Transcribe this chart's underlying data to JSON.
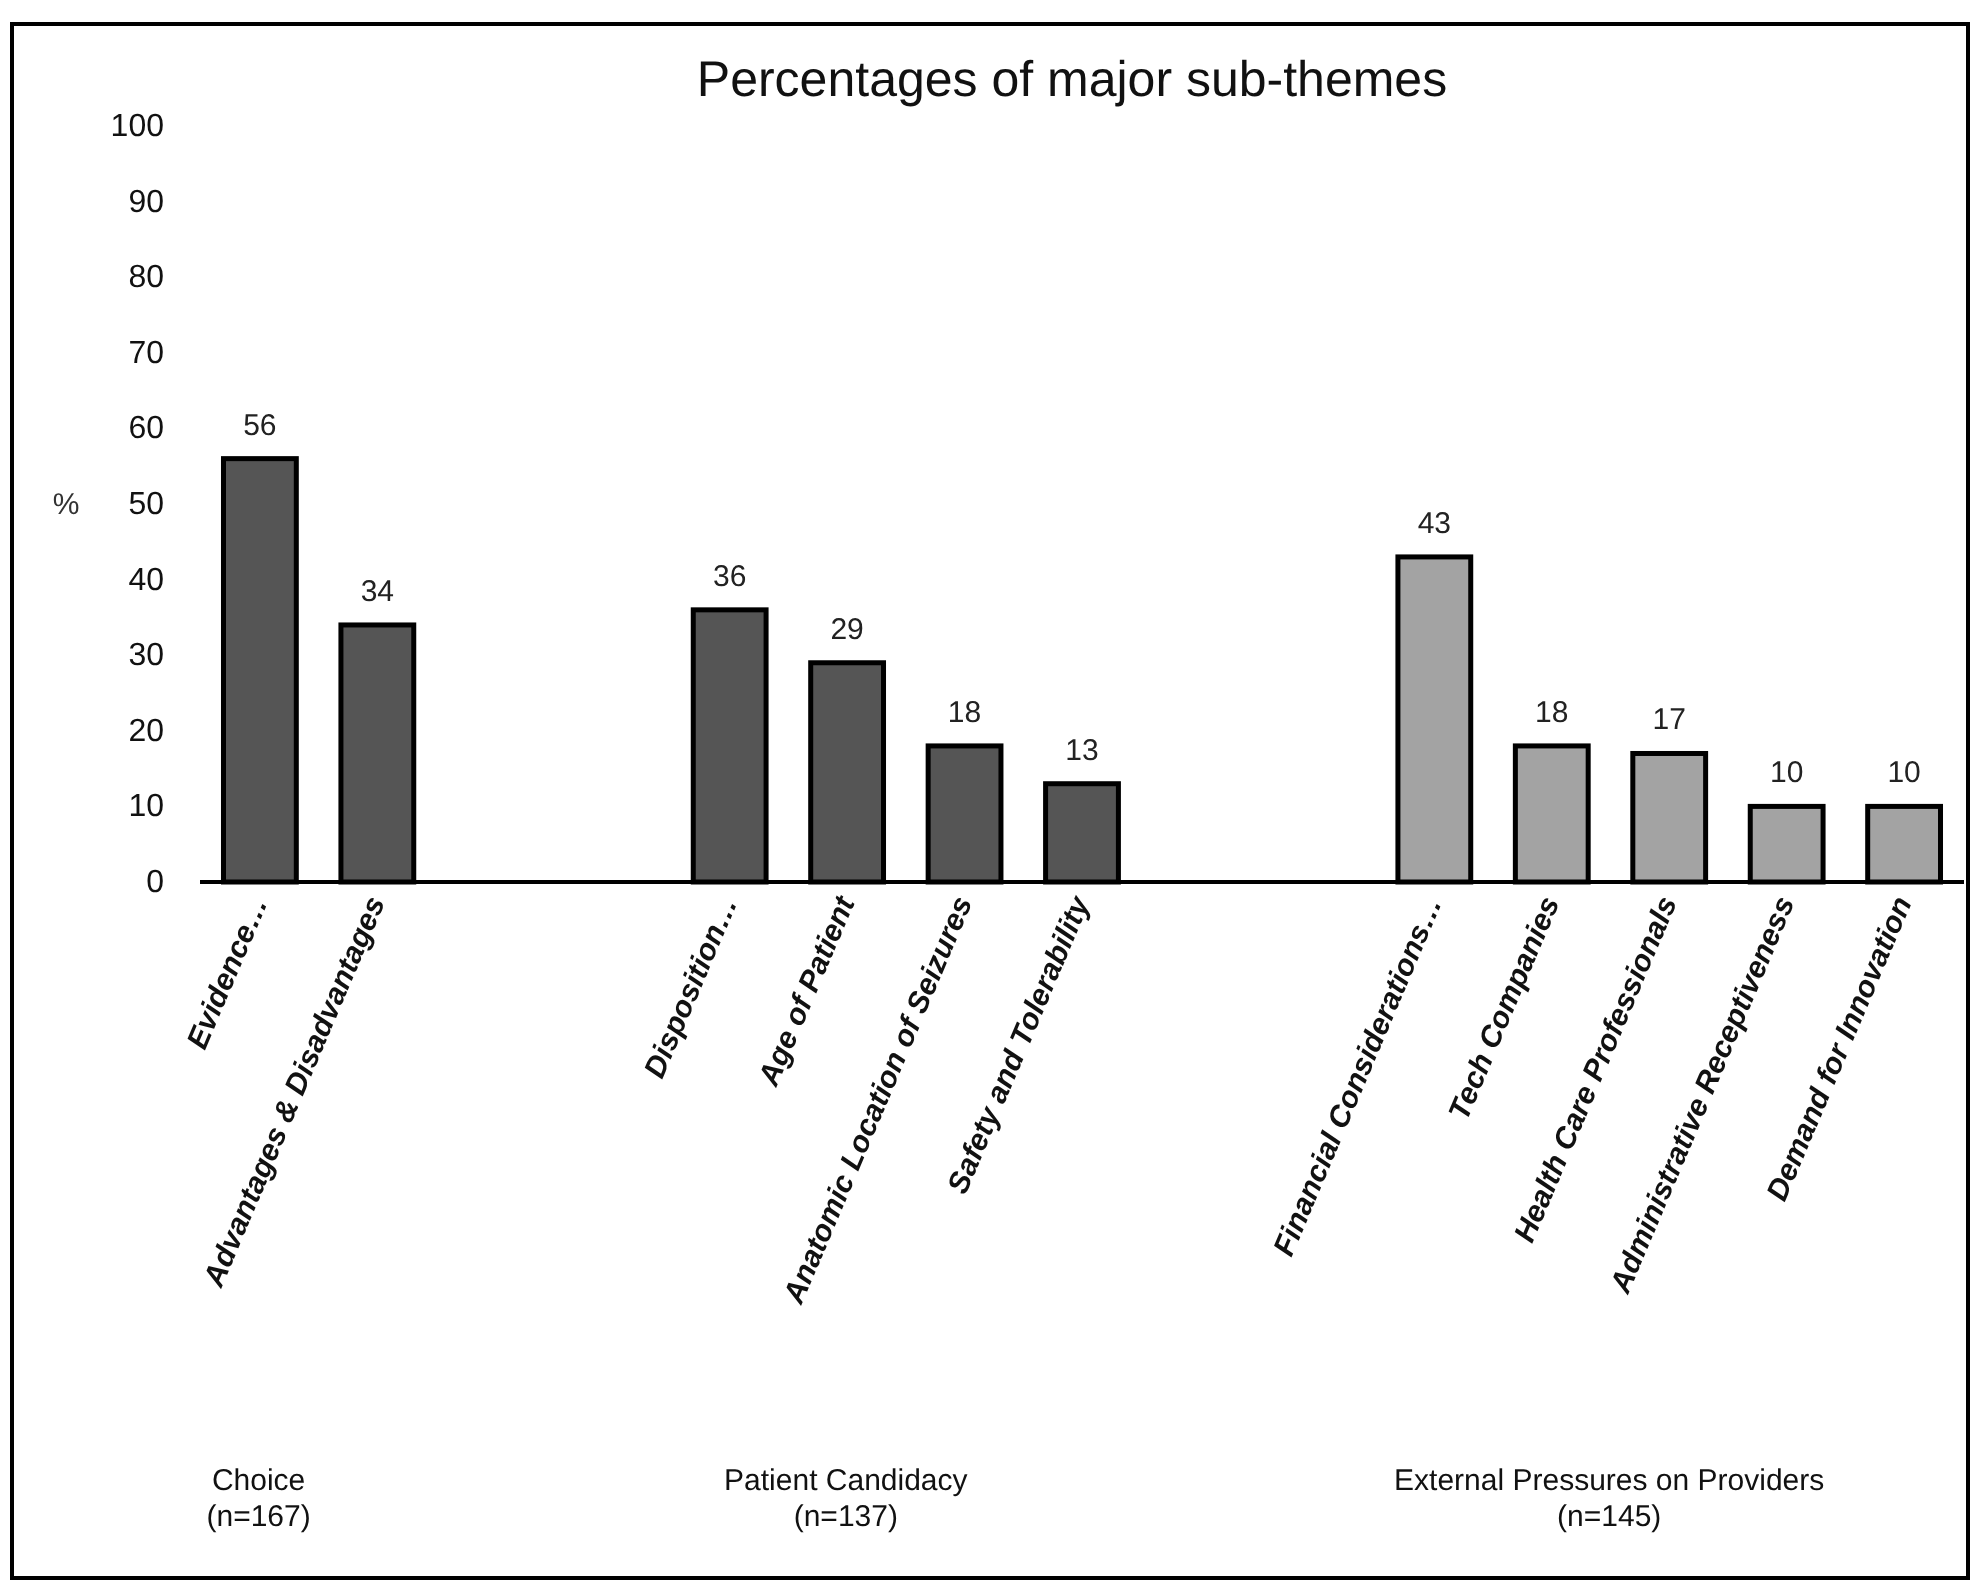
{
  "chart_data": {
    "type": "bar",
    "title": "Percentages of major sub-themes",
    "ylabel": "%",
    "categories": [
      "Evidence…",
      "Advantages & Disadvantages",
      null,
      null,
      "Disposition…",
      "Age of Patient",
      "Anatomic Location of Seizures",
      "Safety and Tolerability",
      null,
      null,
      "Financial Considerations…",
      "Tech Companies",
      "Health Care Professionals",
      "Administrative Receptiveness",
      "Demand for Innovation"
    ],
    "values": [
      56,
      34,
      null,
      null,
      36,
      29,
      18,
      13,
      null,
      null,
      43,
      18,
      17,
      10,
      10
    ],
    "colors": [
      "#555555",
      "#555555",
      null,
      null,
      "#555555",
      "#555555",
      "#555555",
      "#555555",
      null,
      null,
      "#a3a3a3",
      "#a3a3a3",
      "#a3a3a3",
      "#a3a3a3",
      "#a3a3a3"
    ],
    "ylim": [
      0,
      100
    ],
    "yticks": [
      0,
      10,
      20,
      30,
      40,
      50,
      60,
      70,
      80,
      90,
      100
    ],
    "data_labels": true,
    "annotations": [
      "Choice\n(n=167)",
      "Patient Candidacy\n(n=137)",
      "External Pressures on Providers\n(n=145)"
    ]
  }
}
